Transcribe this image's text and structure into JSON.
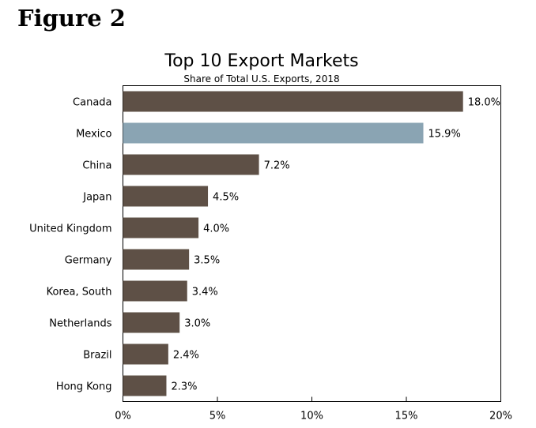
{
  "figure_label": "Figure 2",
  "chart_data": {
    "type": "bar",
    "orientation": "horizontal",
    "title": "Top 10 Export Markets",
    "subtitle": "Share of Total U.S. Exports, 2018",
    "categories": [
      "Canada",
      "Mexico",
      "China",
      "Japan",
      "United Kingdom",
      "Germany",
      "Korea, South",
      "Netherlands",
      "Brazil",
      "Hong Kong"
    ],
    "values": [
      18.0,
      15.9,
      7.2,
      4.5,
      4.0,
      3.5,
      3.4,
      3.0,
      2.4,
      2.3
    ],
    "value_labels": [
      "18.0%",
      "15.9%",
      "7.2%",
      "4.5%",
      "4.0%",
      "3.5%",
      "3.4%",
      "3.0%",
      "2.4%",
      "2.3%"
    ],
    "highlight_category": "Mexico",
    "xlim": [
      0,
      20
    ],
    "x_ticks": [
      0,
      5,
      10,
      15,
      20
    ],
    "x_tick_labels": [
      "0%",
      "5%",
      "10%",
      "15%",
      "20%"
    ],
    "grid": false,
    "colors": {
      "bar": "#5e5046",
      "highlight": "#8aa4b3",
      "axis": "#000000"
    }
  }
}
